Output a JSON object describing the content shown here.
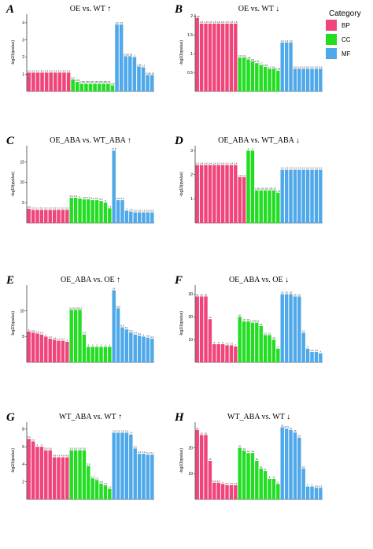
{
  "legend": {
    "title": "Category",
    "items": [
      {
        "label": "BP",
        "color": "#F0457A"
      },
      {
        "label": "CC",
        "color": "#22DD22"
      },
      {
        "label": "MF",
        "color": "#4FA8EA"
      }
    ]
  },
  "colors": {
    "BP": "#F0457A",
    "CC": "#22DD22",
    "MF": "#4FA8EA"
  },
  "chart_data": [
    {
      "type": "bar",
      "letter": "A",
      "title": "OE vs. WT ↑",
      "ylabel": "-log10(qvalue)",
      "ylim": [
        0,
        4.5
      ],
      "yticks": [
        1,
        2,
        3,
        4
      ],
      "values": [
        1.1,
        1.1,
        1.1,
        1.1,
        1.1,
        1.1,
        1.1,
        1.1,
        1.1,
        1.1,
        0.7,
        0.55,
        0.45,
        0.45,
        0.45,
        0.45,
        0.45,
        0.45,
        0.45,
        0.35,
        3.9,
        3.9,
        2.05,
        2.05,
        2.0,
        1.45,
        1.4,
        0.95,
        0.95
      ],
      "groups": [
        "BP",
        "BP",
        "BP",
        "BP",
        "BP",
        "BP",
        "BP",
        "BP",
        "BP",
        "BP",
        "CC",
        "CC",
        "CC",
        "CC",
        "CC",
        "CC",
        "CC",
        "CC",
        "CC",
        "CC",
        "MF",
        "MF",
        "MF",
        "MF",
        "MF",
        "MF",
        "MF",
        "MF",
        "MF"
      ]
    },
    {
      "type": "bar",
      "letter": "B",
      "title": "OE vs. WT ↓",
      "ylabel": "-log10(qvalue)",
      "ylim": [
        0,
        2.05
      ],
      "yticks": [
        0.5,
        1.0,
        1.5,
        2.0
      ],
      "values": [
        1.95,
        1.8,
        1.8,
        1.8,
        1.8,
        1.8,
        1.8,
        1.8,
        1.8,
        1.8,
        0.9,
        0.9,
        0.85,
        0.8,
        0.75,
        0.7,
        0.65,
        0.6,
        0.6,
        0.55,
        1.3,
        1.3,
        1.3,
        0.6,
        0.6,
        0.6,
        0.6,
        0.6,
        0.6,
        0.6
      ],
      "groups": [
        "BP",
        "BP",
        "BP",
        "BP",
        "BP",
        "BP",
        "BP",
        "BP",
        "BP",
        "BP",
        "CC",
        "CC",
        "CC",
        "CC",
        "CC",
        "CC",
        "CC",
        "CC",
        "CC",
        "CC",
        "MF",
        "MF",
        "MF",
        "MF",
        "MF",
        "MF",
        "MF",
        "MF",
        "MF",
        "MF"
      ]
    },
    {
      "type": "bar",
      "letter": "C",
      "title": "OE_ABA vs. WT_ABA ↑",
      "ylabel": "-log10(qvalue)",
      "ylim": [
        0,
        19
      ],
      "yticks": [
        5,
        10,
        15
      ],
      "values": [
        3.5,
        3.2,
        3.2,
        3.2,
        3.2,
        3.2,
        3.2,
        3.2,
        3.2,
        3.2,
        6.2,
        6.2,
        6.0,
        5.8,
        5.8,
        5.6,
        5.6,
        5.4,
        5.0,
        3.6,
        17.8,
        5.6,
        5.6,
        3.0,
        2.8,
        2.6,
        2.6,
        2.6,
        2.6,
        2.6
      ],
      "groups": [
        "BP",
        "BP",
        "BP",
        "BP",
        "BP",
        "BP",
        "BP",
        "BP",
        "BP",
        "BP",
        "CC",
        "CC",
        "CC",
        "CC",
        "CC",
        "CC",
        "CC",
        "CC",
        "CC",
        "CC",
        "MF",
        "MF",
        "MF",
        "MF",
        "MF",
        "MF",
        "MF",
        "MF",
        "MF",
        "MF"
      ]
    },
    {
      "type": "bar",
      "letter": "D",
      "title": "OE_ABA vs. WT_ABA ↓",
      "ylabel": "-log10(qvalue)",
      "ylim": [
        0,
        3.2
      ],
      "yticks": [
        1,
        2,
        3
      ],
      "values": [
        2.4,
        2.4,
        2.4,
        2.4,
        2.4,
        2.4,
        2.4,
        2.4,
        2.4,
        2.4,
        1.9,
        1.9,
        3.0,
        3.0,
        1.35,
        1.35,
        1.35,
        1.35,
        1.35,
        1.25,
        2.2,
        2.2,
        2.2,
        2.2,
        2.2,
        2.2,
        2.2,
        2.2,
        2.2,
        2.2
      ],
      "groups": [
        "BP",
        "BP",
        "BP",
        "BP",
        "BP",
        "BP",
        "BP",
        "BP",
        "BP",
        "BP",
        "BP",
        "BP",
        "CC",
        "CC",
        "CC",
        "CC",
        "CC",
        "CC",
        "CC",
        "CC",
        "MF",
        "MF",
        "MF",
        "MF",
        "MF",
        "MF",
        "MF",
        "MF",
        "MF",
        "MF"
      ]
    },
    {
      "type": "bar",
      "letter": "E",
      "title": "OE_ABA vs. OE ↑",
      "ylabel": "-log10(qvalue)",
      "ylim": [
        0,
        15
      ],
      "yticks": [
        5,
        10
      ],
      "values": [
        6.0,
        5.8,
        5.6,
        5.4,
        5.0,
        4.6,
        4.4,
        4.2,
        4.2,
        4.0,
        10.2,
        10.2,
        10.2,
        5.4,
        3.0,
        3.0,
        3.0,
        3.0,
        3.0,
        3.0,
        14.0,
        10.5,
        6.8,
        6.4,
        5.8,
        5.4,
        5.2,
        5.0,
        4.8,
        4.6
      ],
      "groups": [
        "BP",
        "BP",
        "BP",
        "BP",
        "BP",
        "BP",
        "BP",
        "BP",
        "BP",
        "BP",
        "CC",
        "CC",
        "CC",
        "CC",
        "CC",
        "CC",
        "CC",
        "CC",
        "CC",
        "CC",
        "MF",
        "MF",
        "MF",
        "MF",
        "MF",
        "MF",
        "MF",
        "MF",
        "MF",
        "MF"
      ]
    },
    {
      "type": "bar",
      "letter": "F",
      "title": "OE_ABA vs. OE ↓",
      "ylabel": "-log10(qvalue)",
      "ylim": [
        0,
        34
      ],
      "yticks": [
        10,
        20,
        30
      ],
      "values": [
        29,
        29,
        29,
        19,
        8,
        8,
        8,
        7.5,
        7.5,
        7,
        20,
        18,
        18,
        17.5,
        17.5,
        16,
        12,
        12,
        10,
        6,
        30,
        30,
        30,
        29,
        29,
        13,
        6,
        4.5,
        4.5,
        4
      ],
      "groups": [
        "BP",
        "BP",
        "BP",
        "BP",
        "BP",
        "BP",
        "BP",
        "BP",
        "BP",
        "BP",
        "CC",
        "CC",
        "CC",
        "CC",
        "CC",
        "CC",
        "CC",
        "CC",
        "CC",
        "CC",
        "MF",
        "MF",
        "MF",
        "MF",
        "MF",
        "MF",
        "MF",
        "MF",
        "MF",
        "MF"
      ]
    },
    {
      "type": "bar",
      "letter": "G",
      "title": "WT_ABA vs. WT ↑",
      "ylabel": "-log10(qvalue)",
      "ylim": [
        0,
        8.8
      ],
      "yticks": [
        2,
        4,
        6,
        8
      ],
      "values": [
        6.9,
        6.6,
        6.0,
        6.0,
        5.6,
        5.6,
        4.8,
        4.8,
        4.8,
        4.8,
        5.6,
        5.6,
        5.6,
        5.6,
        3.8,
        2.4,
        2.2,
        1.8,
        1.6,
        1.2,
        7.6,
        7.6,
        7.6,
        7.6,
        7.4,
        5.8,
        5.2,
        5.2,
        5.1,
        5.1
      ],
      "groups": [
        "BP",
        "BP",
        "BP",
        "BP",
        "BP",
        "BP",
        "BP",
        "BP",
        "BP",
        "BP",
        "CC",
        "CC",
        "CC",
        "CC",
        "CC",
        "CC",
        "CC",
        "CC",
        "CC",
        "CC",
        "MF",
        "MF",
        "MF",
        "MF",
        "MF",
        "MF",
        "MF",
        "MF",
        "MF",
        "MF"
      ]
    },
    {
      "type": "bar",
      "letter": "H",
      "title": "WT_ABA vs. WT ↓",
      "ylabel": "-log10(qvalue)",
      "ylim": [
        0,
        30
      ],
      "yticks": [
        10,
        20
      ],
      "values": [
        27,
        25,
        25,
        15,
        6.5,
        6.5,
        6.0,
        5.5,
        5.5,
        5.5,
        20,
        19,
        18,
        18,
        15,
        12,
        11,
        8,
        8,
        6,
        28,
        27.5,
        27,
        26,
        24,
        12,
        5.0,
        5.0,
        4.5,
        4.5
      ],
      "groups": [
        "BP",
        "BP",
        "BP",
        "BP",
        "BP",
        "BP",
        "BP",
        "BP",
        "BP",
        "BP",
        "CC",
        "CC",
        "CC",
        "CC",
        "CC",
        "CC",
        "CC",
        "CC",
        "CC",
        "CC",
        "MF",
        "MF",
        "MF",
        "MF",
        "MF",
        "MF",
        "MF",
        "MF",
        "MF",
        "MF"
      ]
    }
  ]
}
